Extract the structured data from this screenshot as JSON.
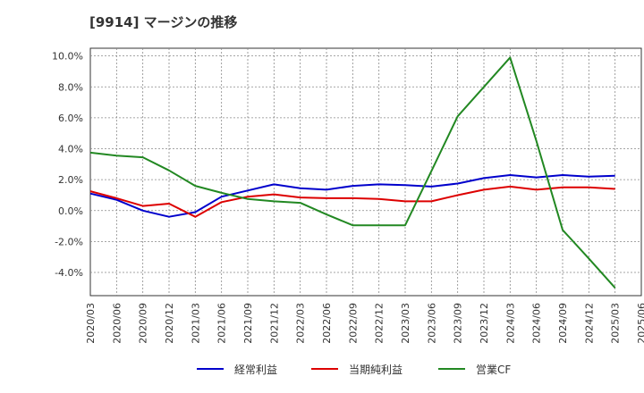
{
  "chart_data": {
    "type": "line",
    "title": "[9914]  マージンの推移",
    "xlabel": "",
    "ylabel": "",
    "ylim": [
      -5.5,
      10.5
    ],
    "y_ticks": [
      10.0,
      8.0,
      6.0,
      4.0,
      2.0,
      0.0,
      -2.0,
      -4.0
    ],
    "y_tick_labels": [
      "10.0%",
      "8.0%",
      "6.0%",
      "4.0%",
      "2.0%",
      "0.0%",
      "-2.0%",
      "-4.0%"
    ],
    "categories": [
      "2020/03",
      "2020/06",
      "2020/09",
      "2020/12",
      "2021/03",
      "2021/06",
      "2021/09",
      "2021/12",
      "2022/03",
      "2022/06",
      "2022/09",
      "2022/12",
      "2023/03",
      "2023/06",
      "2023/09",
      "2023/12",
      "2024/03",
      "2024/06",
      "2024/09",
      "2024/12",
      "2025/03",
      "2025/06"
    ],
    "grid": true,
    "legend_position": "bottom",
    "series": [
      {
        "name": "経常利益",
        "color": "#0000cc",
        "values": [
          1.1,
          0.7,
          0.0,
          -0.4,
          -0.1,
          0.9,
          1.3,
          1.7,
          1.45,
          1.35,
          1.6,
          1.7,
          1.65,
          1.55,
          1.75,
          2.1,
          2.3,
          2.15,
          2.3,
          2.2,
          2.25,
          null
        ]
      },
      {
        "name": "当期純利益",
        "color": "#dd0000",
        "values": [
          1.25,
          0.8,
          0.3,
          0.45,
          -0.4,
          0.55,
          0.9,
          1.05,
          0.85,
          0.8,
          0.8,
          0.75,
          0.6,
          0.6,
          1.0,
          1.35,
          1.55,
          1.35,
          1.5,
          1.5,
          1.4,
          null
        ]
      },
      {
        "name": "営業CF",
        "color": "#228822",
        "values": [
          3.75,
          3.55,
          3.45,
          2.6,
          1.6,
          1.15,
          0.75,
          0.6,
          0.5,
          -0.25,
          -0.95,
          -0.95,
          -0.95,
          2.55,
          6.1,
          8.0,
          9.9,
          4.5,
          -1.25,
          -3.1,
          -5.0,
          null
        ]
      }
    ]
  }
}
